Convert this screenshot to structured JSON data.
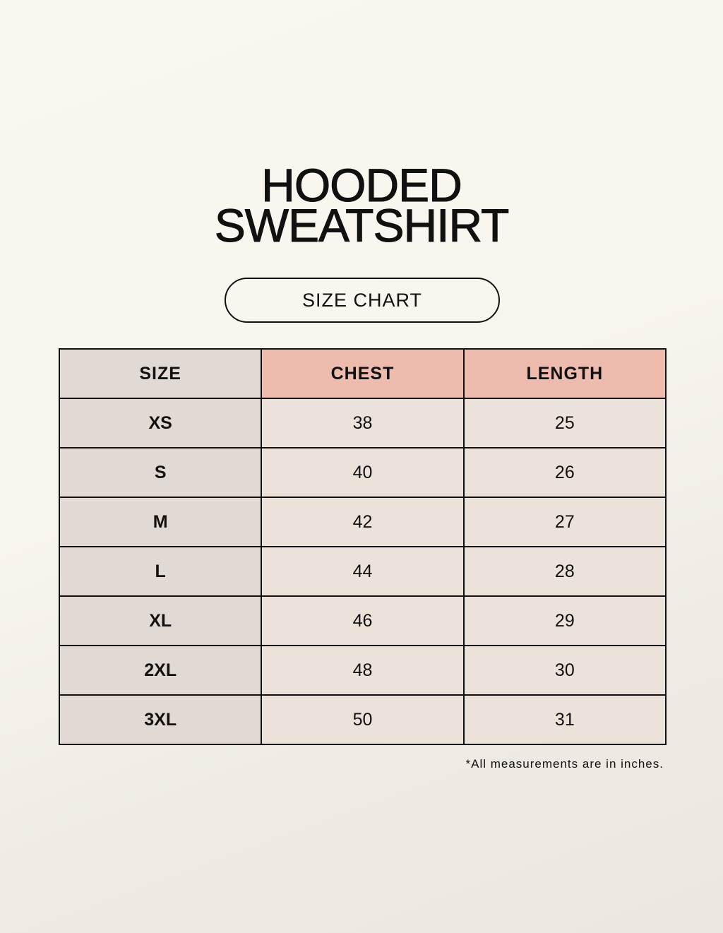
{
  "title": {
    "line1": "HOODED",
    "line2": "SWEATSHIRT"
  },
  "subtitle": "SIZE CHART",
  "table": {
    "headers": [
      "SIZE",
      "CHEST",
      "LENGTH"
    ],
    "rows": [
      [
        "XS",
        "38",
        "25"
      ],
      [
        "S",
        "40",
        "26"
      ],
      [
        "M",
        "42",
        "27"
      ],
      [
        "L",
        "44",
        "28"
      ],
      [
        "XL",
        "46",
        "29"
      ],
      [
        "2XL",
        "48",
        "30"
      ],
      [
        "3XL",
        "50",
        "31"
      ]
    ]
  },
  "note": "*All measurements are in inches.",
  "colors": {
    "size_column": "#e0d9d4",
    "header_accent": "#edbcae",
    "value_cells": "#ebe3d9"
  }
}
